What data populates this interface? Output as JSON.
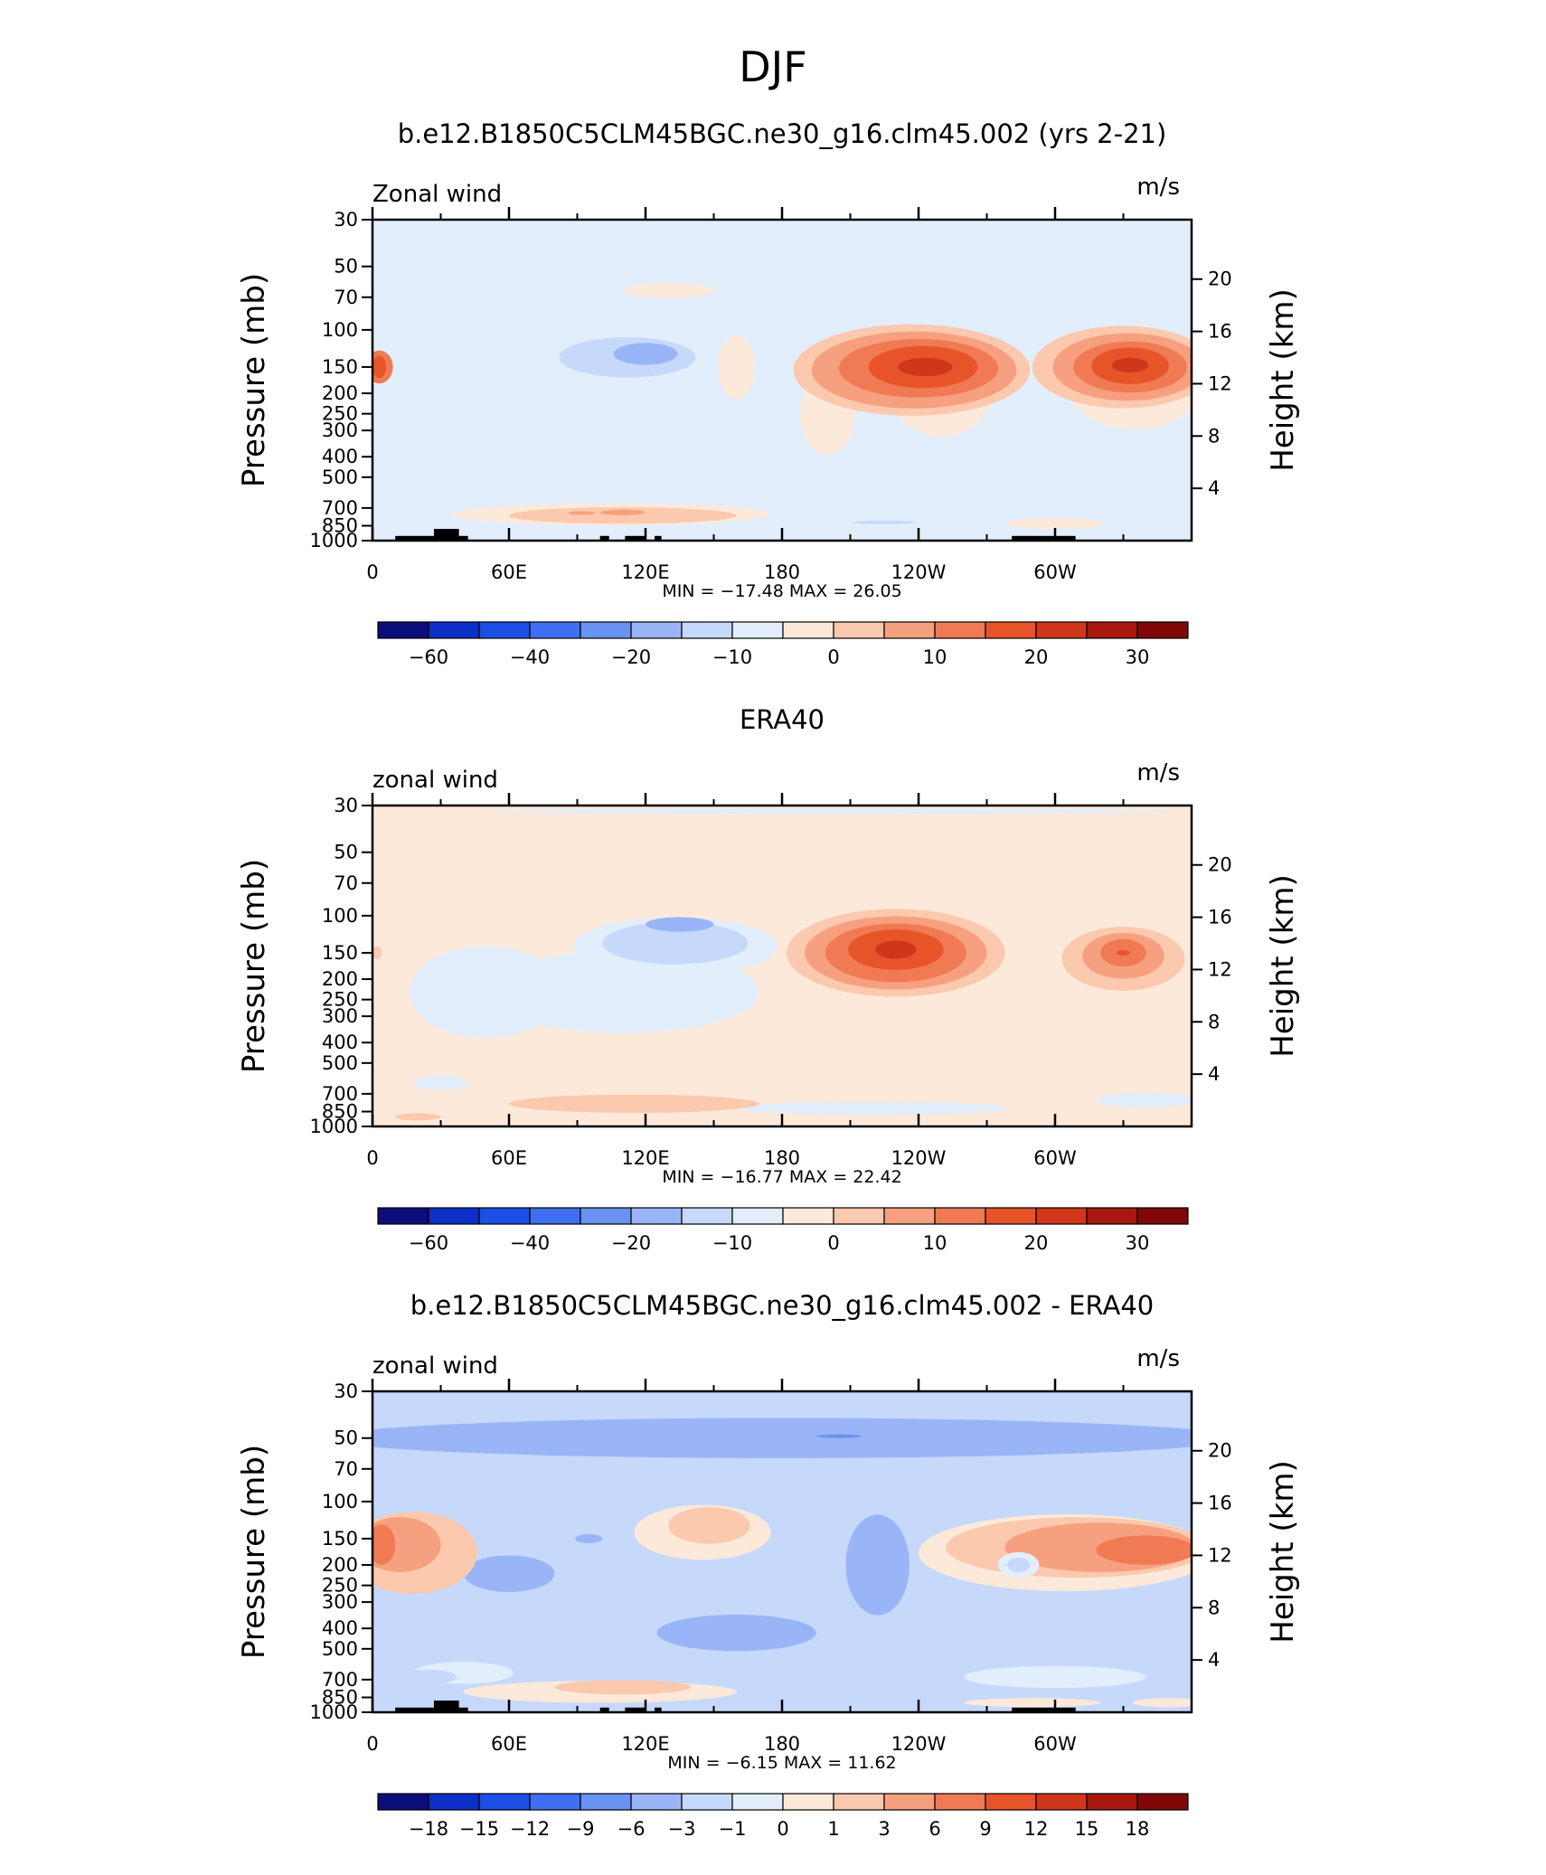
{
  "page_title": "DJF",
  "chart_data": [
    {
      "type": "heatmap",
      "title": "b.e12.B1850C5CLM45BGC.ne30_g16.clm45.002 (yrs 2-21)",
      "left_label": "Zonal wind",
      "right_label": "m/s",
      "ylabel": "Pressure (mb)",
      "y2label": "Height (km)",
      "x_ticks": [
        "0",
        "60E",
        "120E",
        "180",
        "120W",
        "60W"
      ],
      "x_tick_values": [
        0,
        60,
        120,
        180,
        240,
        300
      ],
      "xlim": [
        0,
        360
      ],
      "y_ticks": [
        "30",
        "50",
        "70",
        "100",
        "150",
        "200",
        "250",
        "300",
        "400",
        "500",
        "700",
        "850",
        "1000"
      ],
      "y_tick_values": [
        30,
        50,
        70,
        100,
        150,
        200,
        250,
        300,
        400,
        500,
        700,
        850,
        1000
      ],
      "ylim": [
        1000,
        30
      ],
      "y_scale": "log",
      "y2_ticks": [
        "4",
        "8",
        "12",
        "16",
        "20"
      ],
      "y2_tick_values": [
        4,
        8,
        12,
        16,
        20
      ],
      "minmax_text": "MIN =  −17.48   MAX =   26.05",
      "min": -17.48,
      "max": 26.05,
      "colorbar_labels": [
        "−60",
        "−40",
        "−20",
        "−10",
        "0",
        "10",
        "20",
        "30"
      ],
      "colorbar_label_positions": [
        1,
        3,
        5,
        7,
        9,
        11,
        13,
        15
      ],
      "colorbar_colors": [
        "#0b0e7a",
        "#0c2fc7",
        "#1b4fe6",
        "#3d6ff0",
        "#6a92f3",
        "#99b5f7",
        "#c6d9fb",
        "#e3eefc",
        "#fde9da",
        "#fbc9ae",
        "#f7a07f",
        "#f07a53",
        "#e8542a",
        "#d0361a",
        "#a9180e",
        "#800808"
      ],
      "background_level": "#e3eefc",
      "regions": [
        {
          "lon": 3,
          "lat": 150,
          "rx": 6,
          "ry": 0.18,
          "level": 3
        },
        {
          "lon": 3,
          "lat": 150,
          "rx": 3,
          "ry": 0.12,
          "level": 4
        },
        {
          "lon": 160,
          "lat": 150,
          "rx": 8,
          "ry": 0.35,
          "level": 0
        },
        {
          "lon": 130,
          "lat": 65,
          "rx": 20,
          "ry": 0.08,
          "level": 0
        },
        {
          "lon": 200,
          "lat": 250,
          "rx": 12,
          "ry": 0.45,
          "level": 0
        },
        {
          "lon": 250,
          "lat": 180,
          "rx": 24,
          "ry": 0.58,
          "level": 0
        },
        {
          "lon": 335,
          "lat": 180,
          "rx": 30,
          "ry": 0.5,
          "level": 0
        },
        {
          "lon": 110,
          "lat": 140,
          "rx": 42,
          "ry": 0.3,
          "level": -1
        },
        {
          "lon": 112,
          "lat": 135,
          "rx": 30,
          "ry": 0.22,
          "level": -2
        },
        {
          "lon": 120,
          "lat": 130,
          "rx": 14,
          "ry": 0.12,
          "level": -3
        },
        {
          "lon": 237,
          "lat": 155,
          "rx": 52,
          "ry": 0.5,
          "level": 1
        },
        {
          "lon": 238,
          "lat": 155,
          "rx": 45,
          "ry": 0.42,
          "level": 2
        },
        {
          "lon": 240,
          "lat": 152,
          "rx": 35,
          "ry": 0.32,
          "level": 3
        },
        {
          "lon": 242,
          "lat": 150,
          "rx": 24,
          "ry": 0.23,
          "level": 4
        },
        {
          "lon": 243,
          "lat": 150,
          "rx": 12,
          "ry": 0.1,
          "level": 5
        },
        {
          "lon": 330,
          "lat": 150,
          "rx": 40,
          "ry": 0.45,
          "level": 1
        },
        {
          "lon": 332,
          "lat": 150,
          "rx": 33,
          "ry": 0.37,
          "level": 2
        },
        {
          "lon": 333,
          "lat": 150,
          "rx": 25,
          "ry": 0.28,
          "level": 3
        },
        {
          "lon": 333,
          "lat": 148,
          "rx": 17,
          "ry": 0.2,
          "level": 4
        },
        {
          "lon": 333,
          "lat": 147,
          "rx": 8,
          "ry": 0.08,
          "level": 5
        },
        {
          "lon": 105,
          "lat": 750,
          "rx": 70,
          "ry": 0.12,
          "level": 0
        },
        {
          "lon": 110,
          "lat": 760,
          "rx": 50,
          "ry": 0.09,
          "level": 1
        },
        {
          "lon": 110,
          "lat": 735,
          "rx": 10,
          "ry": 0.03,
          "level": 2
        },
        {
          "lon": 92,
          "lat": 740,
          "rx": 6,
          "ry": 0.02,
          "level": 2
        },
        {
          "lon": 225,
          "lat": 820,
          "rx": 14,
          "ry": 0.02,
          "level": -2
        },
        {
          "lon": 300,
          "lat": 830,
          "rx": 22,
          "ry": 0.06,
          "level": 0
        }
      ],
      "terrain": [
        [
          10,
          27,
          950
        ],
        [
          27,
          38,
          880
        ],
        [
          38,
          42,
          950
        ],
        [
          100,
          104,
          950
        ],
        [
          111,
          120,
          950
        ],
        [
          124,
          127,
          950
        ],
        [
          281,
          309,
          950
        ]
      ]
    },
    {
      "type": "heatmap",
      "title": "ERA40",
      "left_label": "zonal wind",
      "right_label": "m/s",
      "ylabel": "Pressure (mb)",
      "y2label": "Height (km)",
      "x_ticks": [
        "0",
        "60E",
        "120E",
        "180",
        "120W",
        "60W"
      ],
      "x_tick_values": [
        0,
        60,
        120,
        180,
        240,
        300
      ],
      "xlim": [
        0,
        360
      ],
      "y_ticks": [
        "30",
        "50",
        "70",
        "100",
        "150",
        "200",
        "250",
        "300",
        "400",
        "500",
        "700",
        "850",
        "1000"
      ],
      "y_tick_values": [
        30,
        50,
        70,
        100,
        150,
        200,
        250,
        300,
        400,
        500,
        700,
        850,
        1000
      ],
      "ylim": [
        1000,
        30
      ],
      "y_scale": "log",
      "y2_ticks": [
        "4",
        "8",
        "12",
        "16",
        "20"
      ],
      "y2_tick_values": [
        4,
        8,
        12,
        16,
        20
      ],
      "minmax_text": "MIN =  −16.77   MAX =   22.42",
      "min": -16.77,
      "max": 22.42,
      "colorbar_labels": [
        "−60",
        "−40",
        "−20",
        "−10",
        "0",
        "10",
        "20",
        "30"
      ],
      "colorbar_label_positions": [
        1,
        3,
        5,
        7,
        9,
        11,
        13,
        15
      ],
      "colorbar_colors": [
        "#0b0e7a",
        "#0c2fc7",
        "#1b4fe6",
        "#3d6ff0",
        "#6a92f3",
        "#99b5f7",
        "#c6d9fb",
        "#e3eefc",
        "#fde9da",
        "#fbc9ae",
        "#f7a07f",
        "#f07a53",
        "#e8542a",
        "#d0361a",
        "#a9180e",
        "#800808"
      ],
      "background_level": "#fde9da",
      "regions": [
        {
          "lon": 200,
          "lat": 32,
          "rx": 150,
          "ry": 0.03,
          "level": -1
        },
        {
          "lon": 50,
          "lat": 230,
          "rx": 34,
          "ry": 0.5,
          "level": -1
        },
        {
          "lon": 110,
          "lat": 230,
          "rx": 60,
          "ry": 0.45,
          "level": -1
        },
        {
          "lon": 133,
          "lat": 140,
          "rx": 45,
          "ry": 0.32,
          "level": -1
        },
        {
          "lon": 133,
          "lat": 135,
          "rx": 32,
          "ry": 0.23,
          "level": -2
        },
        {
          "lon": 135,
          "lat": 110,
          "rx": 15,
          "ry": 0.08,
          "level": -3
        },
        {
          "lon": 30,
          "lat": 620,
          "rx": 12,
          "ry": 0.08,
          "level": -1
        },
        {
          "lon": 340,
          "lat": 750,
          "rx": 22,
          "ry": 0.08,
          "level": -1
        },
        {
          "lon": 220,
          "lat": 820,
          "rx": 60,
          "ry": 0.07,
          "level": -1
        },
        {
          "lon": 230,
          "lat": 150,
          "rx": 48,
          "ry": 0.48,
          "level": 1
        },
        {
          "lon": 230,
          "lat": 150,
          "rx": 40,
          "ry": 0.4,
          "level": 2
        },
        {
          "lon": 230,
          "lat": 150,
          "rx": 31,
          "ry": 0.32,
          "level": 3
        },
        {
          "lon": 230,
          "lat": 145,
          "rx": 21,
          "ry": 0.22,
          "level": 4
        },
        {
          "lon": 230,
          "lat": 145,
          "rx": 9,
          "ry": 0.1,
          "level": 5
        },
        {
          "lon": 330,
          "lat": 160,
          "rx": 27,
          "ry": 0.35,
          "level": 1
        },
        {
          "lon": 330,
          "lat": 155,
          "rx": 18,
          "ry": 0.25,
          "level": 2
        },
        {
          "lon": 330,
          "lat": 150,
          "rx": 10,
          "ry": 0.15,
          "level": 3
        },
        {
          "lon": 330,
          "lat": 150,
          "rx": 3,
          "ry": 0.03,
          "level": 4
        },
        {
          "lon": 115,
          "lat": 780,
          "rx": 55,
          "ry": 0.1,
          "level": 1
        },
        {
          "lon": 20,
          "lat": 900,
          "rx": 10,
          "ry": 0.04,
          "level": 1
        },
        {
          "lon": 2,
          "lat": 150,
          "rx": 2,
          "ry": 0.07,
          "level": 1
        }
      ],
      "terrain": []
    },
    {
      "type": "heatmap",
      "title": "b.e12.B1850C5CLM45BGC.ne30_g16.clm45.002 - ERA40",
      "left_label": "zonal wind",
      "right_label": "m/s",
      "ylabel": "Pressure (mb)",
      "y2label": "Height (km)",
      "x_ticks": [
        "0",
        "60E",
        "120E",
        "180",
        "120W",
        "60W"
      ],
      "x_tick_values": [
        0,
        60,
        120,
        180,
        240,
        300
      ],
      "xlim": [
        0,
        360
      ],
      "y_ticks": [
        "30",
        "50",
        "70",
        "100",
        "150",
        "200",
        "250",
        "300",
        "400",
        "500",
        "700",
        "850",
        "1000"
      ],
      "y_tick_values": [
        30,
        50,
        70,
        100,
        150,
        200,
        250,
        300,
        400,
        500,
        700,
        850,
        1000
      ],
      "ylim": [
        1000,
        30
      ],
      "y_scale": "log",
      "y2_ticks": [
        "4",
        "8",
        "12",
        "16",
        "20"
      ],
      "y2_tick_values": [
        4,
        8,
        12,
        16,
        20
      ],
      "minmax_text": "MIN =   −6.15   MAX =   11.62",
      "min": -6.15,
      "max": 11.62,
      "colorbar_labels": [
        "−18",
        "−15",
        "−12",
        "−9",
        "−6",
        "−3",
        "−1",
        "0",
        "1",
        "3",
        "6",
        "9",
        "12",
        "15",
        "18"
      ],
      "colorbar_label_positions": [
        1,
        2,
        3,
        4,
        5,
        6,
        7,
        8,
        9,
        10,
        11,
        12,
        13,
        14,
        15
      ],
      "colorbar_colors": [
        "#0b0e7a",
        "#0c2fc7",
        "#1b4fe6",
        "#3d6ff0",
        "#6a92f3",
        "#99b5f7",
        "#c6d9fb",
        "#e3eefc",
        "#fde9da",
        "#fbc9ae",
        "#f7a07f",
        "#f07a53",
        "#e8542a",
        "#d0361a",
        "#a9180e",
        "#800808"
      ],
      "background_level": "#c6d9fb",
      "regions": [
        {
          "lon": 180,
          "lat": 50,
          "rx": 200,
          "ry": 0.22,
          "level": -3
        },
        {
          "lon": 205,
          "lat": 49,
          "rx": 10,
          "ry": 0.02,
          "level": -4
        },
        {
          "lon": 222,
          "lat": 200,
          "rx": 14,
          "ry": 0.55,
          "level": -3
        },
        {
          "lon": 160,
          "lat": 420,
          "rx": 35,
          "ry": 0.2,
          "level": -3
        },
        {
          "lon": 60,
          "lat": 220,
          "rx": 20,
          "ry": 0.2,
          "level": -3
        },
        {
          "lon": 95,
          "lat": 150,
          "rx": 6,
          "ry": 0.05,
          "level": -3
        },
        {
          "lon": 18,
          "lat": 175,
          "rx": 28,
          "ry": 0.45,
          "level": 1
        },
        {
          "lon": 12,
          "lat": 160,
          "rx": 18,
          "ry": 0.3,
          "level": 2
        },
        {
          "lon": 4,
          "lat": 160,
          "rx": 6,
          "ry": 0.22,
          "level": 3
        },
        {
          "lon": 145,
          "lat": 140,
          "rx": 30,
          "ry": 0.3,
          "level": 0
        },
        {
          "lon": 148,
          "lat": 130,
          "rx": 18,
          "ry": 0.2,
          "level": 1
        },
        {
          "lon": 305,
          "lat": 175,
          "rx": 65,
          "ry": 0.42,
          "level": 0
        },
        {
          "lon": 310,
          "lat": 165,
          "rx": 58,
          "ry": 0.33,
          "level": 1
        },
        {
          "lon": 320,
          "lat": 165,
          "rx": 42,
          "ry": 0.27,
          "level": 2
        },
        {
          "lon": 340,
          "lat": 170,
          "rx": 22,
          "ry": 0.16,
          "level": 3
        },
        {
          "lon": 284,
          "lat": 200,
          "rx": 9,
          "ry": 0.14,
          "level": -1
        },
        {
          "lon": 284,
          "lat": 200,
          "rx": 5,
          "ry": 0.08,
          "level": -2
        },
        {
          "lon": 100,
          "lat": 800,
          "rx": 60,
          "ry": 0.12,
          "level": 0
        },
        {
          "lon": 110,
          "lat": 760,
          "rx": 30,
          "ry": 0.08,
          "level": 1
        },
        {
          "lon": 300,
          "lat": 680,
          "rx": 40,
          "ry": 0.12,
          "level": -1
        },
        {
          "lon": 40,
          "lat": 650,
          "rx": 22,
          "ry": 0.12,
          "level": -1
        },
        {
          "lon": 25,
          "lat": 680,
          "rx": 12,
          "ry": 0.08,
          "level": -2
        },
        {
          "lon": 290,
          "lat": 900,
          "rx": 30,
          "ry": 0.05,
          "level": 0
        },
        {
          "lon": 350,
          "lat": 900,
          "rx": 16,
          "ry": 0.05,
          "level": 0
        }
      ],
      "terrain": [
        [
          10,
          27,
          950
        ],
        [
          27,
          38,
          880
        ],
        [
          38,
          42,
          950
        ],
        [
          100,
          104,
          950
        ],
        [
          111,
          120,
          950
        ],
        [
          124,
          127,
          950
        ],
        [
          281,
          309,
          950
        ]
      ]
    }
  ]
}
